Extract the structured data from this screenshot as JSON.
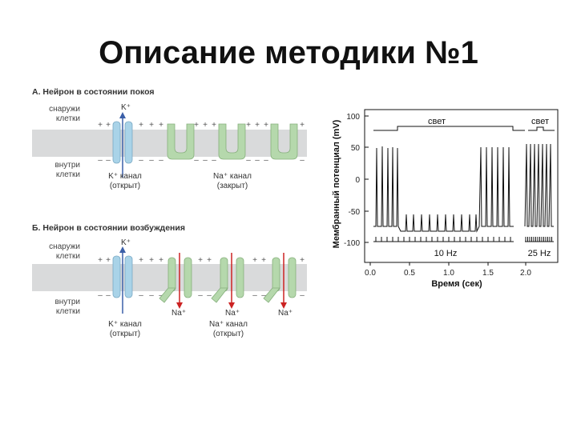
{
  "slide": {
    "title": "Описание методики №1"
  },
  "diagram": {
    "panel_a": {
      "title": "А. Нейрон в состоянии покоя",
      "outside": [
        "снаружи",
        "клетки"
      ],
      "inside": [
        "внутри",
        "клетки"
      ],
      "ion": "K⁺",
      "k_channel": [
        "K⁺ канал",
        "(открыт)"
      ],
      "na_channel": [
        "Na⁺ канал",
        "(закрыт)"
      ]
    },
    "panel_b": {
      "title": "Б. Нейрон в состоянии возбуждения",
      "outside": [
        "снаружи",
        "клетки"
      ],
      "inside": [
        "внутри",
        "клетки"
      ],
      "ion": "K⁺",
      "na_ion": "Na⁺",
      "k_channel": [
        "K⁺ канал",
        "(открыт)"
      ],
      "na_channel": [
        "Na⁺ канал",
        "(открыт)"
      ]
    },
    "signs": {
      "plus": "+",
      "minus": "–"
    },
    "colors": {
      "membrane": "#d9dadb",
      "k_channel": "#a9d3e8",
      "na_channel": "#b5d8ac",
      "k_arrow": "#3b5fa8",
      "na_arrow": "#cc2222"
    }
  },
  "recording": {
    "ylabel": "Мембранный потенциал (mV)",
    "xlabel": "Время (сек)",
    "y_ticks": [
      "100",
      "50",
      "0",
      "-50",
      "-100"
    ],
    "x_ticks": [
      "0.0",
      "0.5",
      "1.0",
      "1.5",
      "2.0"
    ],
    "light_label_1": "свет",
    "light_label_2": "свет",
    "rate_1": "10 Hz",
    "rate_2": "25 Hz"
  }
}
